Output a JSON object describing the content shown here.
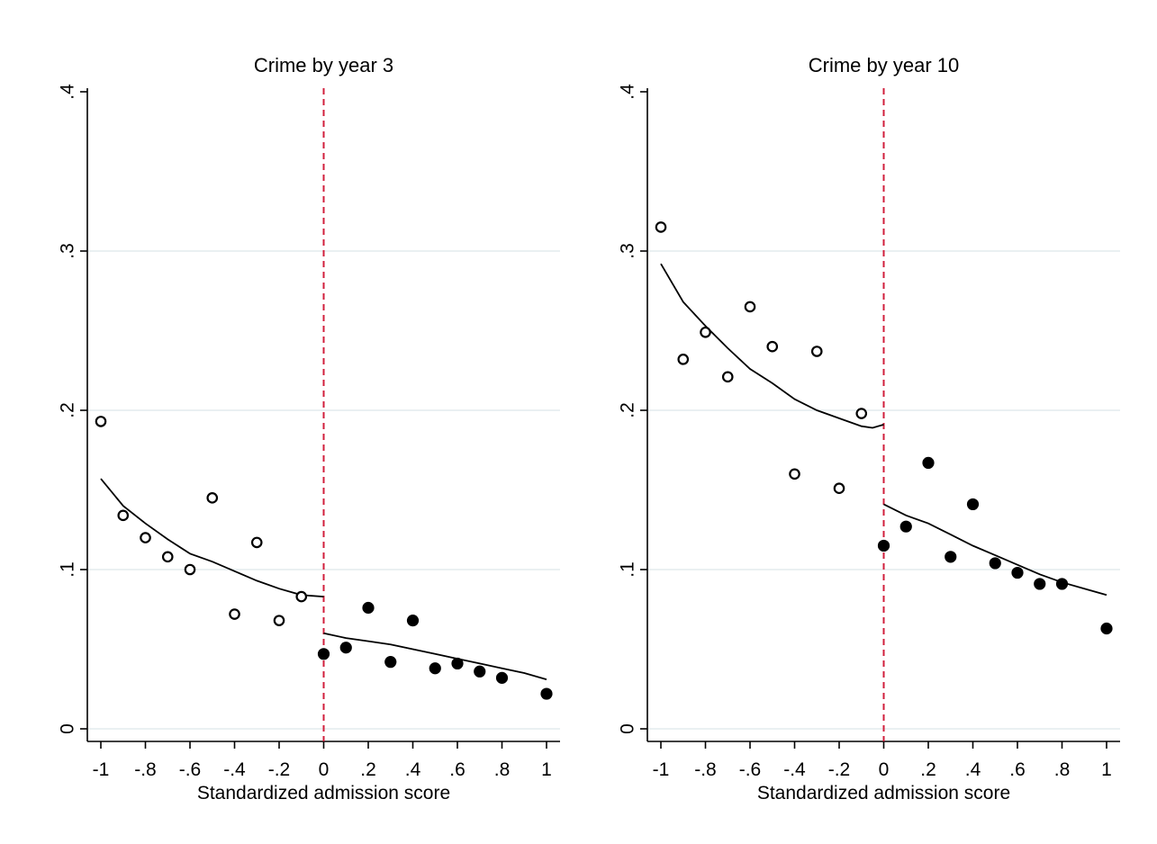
{
  "colors": {
    "background": "#ffffff",
    "axis": "#000000",
    "grid": "#e4ecee",
    "cutoff_line": "#d11f3c",
    "marker": "#000000",
    "fit_line": "#000000"
  },
  "chart_data": [
    {
      "type": "scatter",
      "title": "Crime by year 3",
      "xlabel": "Standardized admission score",
      "ylabel": "",
      "xlim": [
        -1,
        1
      ],
      "ylim": [
        0,
        0.4
      ],
      "x_ticks": [
        -1,
        -0.8,
        -0.6,
        -0.4,
        -0.2,
        0,
        0.2,
        0.4,
        0.6,
        0.8,
        1
      ],
      "x_tick_labels": [
        "-1",
        "-.8",
        "-.6",
        "-.4",
        "-.2",
        "0",
        ".2",
        ".4",
        ".6",
        ".8",
        "1"
      ],
      "y_ticks": [
        0,
        0.1,
        0.2,
        0.3,
        0.4
      ],
      "y_tick_labels": [
        "0",
        ".1",
        ".2",
        ".3",
        ".4"
      ],
      "grid": "horizontal",
      "legend": "none",
      "cutoff": {
        "x": 0,
        "style": "dashed"
      },
      "series": [
        {
          "marker": "hollow-circle",
          "x": [
            -1,
            -0.9,
            -0.8,
            -0.7,
            -0.6,
            -0.5,
            -0.4,
            -0.3,
            -0.2,
            -0.1
          ],
          "y": [
            0.193,
            0.134,
            0.12,
            0.108,
            0.1,
            0.145,
            0.072,
            0.117,
            0.068,
            0.083
          ]
        },
        {
          "marker": "filled-circle",
          "x": [
            0,
            0.1,
            0.2,
            0.3,
            0.4,
            0.5,
            0.6,
            0.7,
            0.8,
            1
          ],
          "y": [
            0.047,
            0.051,
            0.076,
            0.042,
            0.068,
            0.038,
            0.041,
            0.036,
            0.032,
            0.022
          ]
        }
      ],
      "fit_lines": [
        {
          "x": [
            -1,
            -0.9,
            -0.8,
            -0.7,
            -0.6,
            -0.5,
            -0.4,
            -0.3,
            -0.2,
            -0.1,
            0
          ],
          "y": [
            0.157,
            0.14,
            0.129,
            0.119,
            0.11,
            0.105,
            0.099,
            0.093,
            0.088,
            0.084,
            0.083
          ]
        },
        {
          "x": [
            0,
            0.1,
            0.2,
            0.3,
            0.4,
            0.5,
            0.6,
            0.7,
            0.8,
            0.9,
            1
          ],
          "y": [
            0.06,
            0.057,
            0.055,
            0.053,
            0.05,
            0.047,
            0.044,
            0.041,
            0.038,
            0.035,
            0.031
          ]
        }
      ]
    },
    {
      "type": "scatter",
      "title": "Crime by year 10",
      "xlabel": "Standardized admission score",
      "ylabel": "",
      "xlim": [
        -1,
        1
      ],
      "ylim": [
        0,
        0.4
      ],
      "x_ticks": [
        -1,
        -0.8,
        -0.6,
        -0.4,
        -0.2,
        0,
        0.2,
        0.4,
        0.6,
        0.8,
        1
      ],
      "x_tick_labels": [
        "-1",
        "-.8",
        "-.6",
        "-.4",
        "-.2",
        "0",
        ".2",
        ".4",
        ".6",
        ".8",
        "1"
      ],
      "y_ticks": [
        0,
        0.1,
        0.2,
        0.3,
        0.4
      ],
      "y_tick_labels": [
        "0",
        ".1",
        ".2",
        ".3",
        ".4"
      ],
      "grid": "horizontal",
      "legend": "none",
      "cutoff": {
        "x": 0,
        "style": "dashed"
      },
      "series": [
        {
          "marker": "hollow-circle",
          "x": [
            -1,
            -0.9,
            -0.8,
            -0.7,
            -0.6,
            -0.5,
            -0.4,
            -0.3,
            -0.2,
            -0.1
          ],
          "y": [
            0.315,
            0.232,
            0.249,
            0.221,
            0.265,
            0.24,
            0.16,
            0.237,
            0.151,
            0.198
          ]
        },
        {
          "marker": "filled-circle",
          "x": [
            0,
            0.1,
            0.2,
            0.3,
            0.4,
            0.5,
            0.6,
            0.7,
            0.8,
            1
          ],
          "y": [
            0.115,
            0.127,
            0.167,
            0.108,
            0.141,
            0.104,
            0.098,
            0.091,
            0.091,
            0.063
          ]
        }
      ],
      "fit_lines": [
        {
          "x": [
            -1,
            -0.9,
            -0.8,
            -0.7,
            -0.6,
            -0.5,
            -0.4,
            -0.3,
            -0.2,
            -0.1,
            -0.05,
            0
          ],
          "y": [
            0.292,
            0.268,
            0.253,
            0.239,
            0.226,
            0.217,
            0.207,
            0.2,
            0.195,
            0.19,
            0.189,
            0.191
          ]
        },
        {
          "x": [
            0,
            0.1,
            0.2,
            0.3,
            0.4,
            0.5,
            0.6,
            0.7,
            0.8,
            0.9,
            1
          ],
          "y": [
            0.141,
            0.134,
            0.129,
            0.122,
            0.115,
            0.109,
            0.103,
            0.097,
            0.092,
            0.088,
            0.084
          ]
        }
      ]
    }
  ]
}
